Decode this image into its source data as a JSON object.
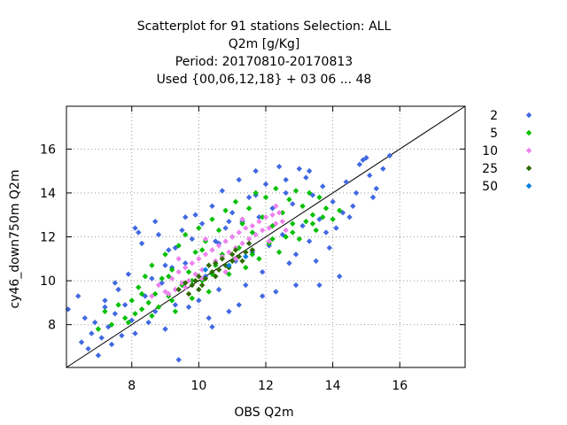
{
  "chart_data": {
    "type": "scatter",
    "title_lines": [
      "Scatterplot for   91 stations Selection: ALL",
      "Q2m [g/Kg]",
      "Period: 20170810-20170813",
      "Used {00,06,12,18} + 03 06 ... 48"
    ],
    "xlabel": "OBS Q2m",
    "ylabel": "cy46_down750m Q2m",
    "xlim": [
      6.05,
      17.95
    ],
    "ylim": [
      6.05,
      17.95
    ],
    "xticks": [
      8,
      10,
      12,
      14,
      16
    ],
    "yticks": [
      8,
      10,
      12,
      14,
      16
    ],
    "grid": true,
    "diagonal_line": true,
    "legend_placement": "right",
    "legend": [
      {
        "label": "2",
        "color": "#4169E1"
      },
      {
        "label": "5",
        "color": "#00C000"
      },
      {
        "label": "10",
        "color": "#EE82EE"
      },
      {
        "label": "25",
        "color": "#2E6B00"
      },
      {
        "label": "50",
        "color": "#0080E0"
      }
    ],
    "series": [
      {
        "label": "2",
        "color": "#4169E1",
        "points": [
          [
            6.1,
            8.7
          ],
          [
            6.4,
            9.3
          ],
          [
            6.5,
            7.2
          ],
          [
            6.6,
            8.3
          ],
          [
            6.7,
            6.9
          ],
          [
            6.8,
            7.6
          ],
          [
            6.9,
            8.1
          ],
          [
            7.0,
            6.6
          ],
          [
            7.1,
            7.4
          ],
          [
            7.2,
            8.8
          ],
          [
            7.3,
            7.9
          ],
          [
            7.4,
            7.1
          ],
          [
            7.5,
            8.5
          ],
          [
            7.6,
            9.6
          ],
          [
            7.7,
            7.5
          ],
          [
            7.8,
            8.9
          ],
          [
            7.9,
            10.3
          ],
          [
            8.0,
            8.2
          ],
          [
            8.1,
            7.6
          ],
          [
            8.2,
            12.2
          ],
          [
            8.3,
            11.7
          ],
          [
            8.4,
            9.3
          ],
          [
            8.5,
            8.1
          ],
          [
            8.6,
            10.1
          ],
          [
            8.7,
            8.6
          ],
          [
            8.8,
            12.1
          ],
          [
            8.9,
            9.9
          ],
          [
            9.0,
            7.8
          ],
          [
            9.1,
            11.4
          ],
          [
            9.2,
            10.6
          ],
          [
            9.3,
            8.9
          ],
          [
            9.4,
            6.4
          ],
          [
            9.5,
            12.3
          ],
          [
            9.6,
            10.8
          ],
          [
            9.7,
            8.8
          ],
          [
            9.8,
            11.9
          ],
          [
            9.9,
            13.0
          ],
          [
            10.0,
            9.1
          ],
          [
            10.1,
            12.6
          ],
          [
            10.2,
            10.2
          ],
          [
            10.3,
            8.3
          ],
          [
            10.4,
            13.4
          ],
          [
            10.5,
            11.8
          ],
          [
            10.6,
            9.6
          ],
          [
            10.7,
            14.1
          ],
          [
            10.8,
            12.4
          ],
          [
            10.9,
            8.6
          ],
          [
            11.0,
            13.1
          ],
          [
            11.1,
            10.9
          ],
          [
            11.2,
            14.6
          ],
          [
            11.3,
            12.7
          ],
          [
            11.4,
            9.8
          ],
          [
            11.5,
            13.8
          ],
          [
            11.6,
            11.3
          ],
          [
            11.7,
            15.0
          ],
          [
            11.8,
            12.9
          ],
          [
            11.9,
            10.4
          ],
          [
            12.0,
            14.4
          ],
          [
            12.1,
            11.6
          ],
          [
            12.2,
            13.3
          ],
          [
            12.3,
            9.5
          ],
          [
            12.4,
            15.2
          ],
          [
            12.5,
            12.1
          ],
          [
            12.6,
            14.0
          ],
          [
            12.7,
            10.8
          ],
          [
            12.8,
            13.5
          ],
          [
            12.9,
            11.2
          ],
          [
            13.0,
            15.1
          ],
          [
            13.1,
            12.5
          ],
          [
            13.2,
            14.7
          ],
          [
            13.3,
            11.8
          ],
          [
            13.4,
            13.9
          ],
          [
            13.5,
            10.9
          ],
          [
            13.6,
            12.8
          ],
          [
            13.7,
            14.3
          ],
          [
            13.8,
            12.2
          ],
          [
            13.9,
            11.5
          ],
          [
            14.0,
            13.6
          ],
          [
            14.1,
            12.4
          ],
          [
            14.2,
            10.2
          ],
          [
            14.3,
            13.1
          ],
          [
            14.4,
            14.5
          ],
          [
            14.5,
            12.9
          ],
          [
            14.6,
            13.4
          ],
          [
            14.7,
            14.0
          ],
          [
            14.8,
            15.3
          ],
          [
            14.9,
            15.5
          ],
          [
            15.0,
            15.6
          ],
          [
            15.1,
            14.8
          ],
          [
            15.2,
            13.8
          ],
          [
            15.3,
            14.2
          ],
          [
            15.5,
            15.1
          ],
          [
            15.7,
            15.7
          ],
          [
            7.5,
            9.9
          ],
          [
            8.7,
            12.7
          ],
          [
            9.6,
            12.9
          ],
          [
            10.4,
            7.9
          ],
          [
            11.2,
            8.9
          ],
          [
            12.9,
            9.8
          ],
          [
            13.6,
            9.8
          ],
          [
            7.2,
            9.1
          ],
          [
            8.1,
            12.4
          ],
          [
            9.3,
            11.5
          ],
          [
            10.9,
            12.7
          ],
          [
            11.7,
            13.9
          ],
          [
            12.6,
            14.6
          ],
          [
            13.3,
            15.0
          ],
          [
            9.0,
            10.7
          ],
          [
            10.6,
            11.7
          ],
          [
            11.9,
            9.3
          ]
        ]
      },
      {
        "label": "5",
        "color": "#00C000",
        "points": [
          [
            7.0,
            7.8
          ],
          [
            7.2,
            8.6
          ],
          [
            7.4,
            8.0
          ],
          [
            7.6,
            8.9
          ],
          [
            7.8,
            8.3
          ],
          [
            8.0,
            9.1
          ],
          [
            8.1,
            8.5
          ],
          [
            8.2,
            9.7
          ],
          [
            8.3,
            8.7
          ],
          [
            8.4,
            10.2
          ],
          [
            8.5,
            9.0
          ],
          [
            8.6,
            10.7
          ],
          [
            8.7,
            9.4
          ],
          [
            8.8,
            8.8
          ],
          [
            8.9,
            10.1
          ],
          [
            9.0,
            11.2
          ],
          [
            9.1,
            9.3
          ],
          [
            9.2,
            10.5
          ],
          [
            9.3,
            8.6
          ],
          [
            9.4,
            11.6
          ],
          [
            9.5,
            9.8
          ],
          [
            9.6,
            12.1
          ],
          [
            9.7,
            10.4
          ],
          [
            9.8,
            9.2
          ],
          [
            9.9,
            11.3
          ],
          [
            10.0,
            12.4
          ],
          [
            10.1,
            10.0
          ],
          [
            10.2,
            11.8
          ],
          [
            10.3,
            9.5
          ],
          [
            10.4,
            12.8
          ],
          [
            10.5,
            10.7
          ],
          [
            10.6,
            12.3
          ],
          [
            10.7,
            11.2
          ],
          [
            10.8,
            13.2
          ],
          [
            10.9,
            10.3
          ],
          [
            11.0,
            12.0
          ],
          [
            11.1,
            13.6
          ],
          [
            11.2,
            11.5
          ],
          [
            11.3,
            12.6
          ],
          [
            11.4,
            10.6
          ],
          [
            11.5,
            13.3
          ],
          [
            11.6,
            12.2
          ],
          [
            11.7,
            14.0
          ],
          [
            11.8,
            11.0
          ],
          [
            11.9,
            12.9
          ],
          [
            12.0,
            13.8
          ],
          [
            12.1,
            11.7
          ],
          [
            12.2,
            12.5
          ],
          [
            12.3,
            14.2
          ],
          [
            12.4,
            11.3
          ],
          [
            12.5,
            13.1
          ],
          [
            12.6,
            12.0
          ],
          [
            12.7,
            13.7
          ],
          [
            12.8,
            12.6
          ],
          [
            12.9,
            14.1
          ],
          [
            13.0,
            11.9
          ],
          [
            13.1,
            13.4
          ],
          [
            13.2,
            12.7
          ],
          [
            13.3,
            14.0
          ],
          [
            13.4,
            13.0
          ],
          [
            13.5,
            12.3
          ],
          [
            13.6,
            13.8
          ],
          [
            13.7,
            12.9
          ],
          [
            13.8,
            13.3
          ],
          [
            14.0,
            12.8
          ],
          [
            14.2,
            13.2
          ],
          [
            7.9,
            8.1
          ],
          [
            8.6,
            8.4
          ],
          [
            9.2,
            9.1
          ],
          [
            9.8,
            10.0
          ],
          [
            10.4,
            10.3
          ],
          [
            11.0,
            10.9
          ],
          [
            11.6,
            11.2
          ],
          [
            12.2,
            11.9
          ],
          [
            12.8,
            12.2
          ],
          [
            13.4,
            12.6
          ],
          [
            8.3,
            9.4
          ],
          [
            9.1,
            10.2
          ],
          [
            10.1,
            11.4
          ],
          [
            11.3,
            12.8
          ]
        ]
      },
      {
        "label": "10",
        "color": "#EE82EE",
        "points": [
          [
            8.6,
            9.3
          ],
          [
            8.8,
            9.8
          ],
          [
            9.0,
            9.5
          ],
          [
            9.2,
            10.1
          ],
          [
            9.3,
            9.6
          ],
          [
            9.4,
            10.4
          ],
          [
            9.5,
            9.9
          ],
          [
            9.6,
            10.6
          ],
          [
            9.7,
            10.0
          ],
          [
            9.8,
            10.8
          ],
          [
            9.9,
            10.3
          ],
          [
            10.0,
            11.0
          ],
          [
            10.1,
            10.5
          ],
          [
            10.2,
            11.2
          ],
          [
            10.3,
            10.7
          ],
          [
            10.4,
            11.4
          ],
          [
            10.5,
            10.9
          ],
          [
            10.6,
            11.6
          ],
          [
            10.7,
            11.1
          ],
          [
            10.8,
            11.8
          ],
          [
            10.9,
            11.3
          ],
          [
            11.0,
            12.0
          ],
          [
            11.1,
            11.5
          ],
          [
            11.2,
            12.2
          ],
          [
            11.3,
            11.7
          ],
          [
            11.4,
            12.4
          ],
          [
            11.5,
            11.9
          ],
          [
            11.6,
            12.5
          ],
          [
            11.7,
            12.1
          ],
          [
            11.8,
            12.7
          ],
          [
            11.9,
            12.3
          ],
          [
            12.0,
            12.9
          ],
          [
            12.1,
            12.4
          ],
          [
            12.2,
            13.0
          ],
          [
            12.3,
            12.6
          ],
          [
            12.4,
            13.1
          ],
          [
            12.5,
            12.7
          ],
          [
            9.1,
            9.4
          ],
          [
            9.6,
            9.7
          ],
          [
            10.1,
            10.1
          ],
          [
            10.6,
            10.5
          ],
          [
            11.1,
            11.0
          ],
          [
            11.6,
            11.4
          ],
          [
            12.1,
            11.8
          ],
          [
            12.6,
            12.3
          ],
          [
            9.4,
            11.0
          ],
          [
            10.2,
            11.9
          ],
          [
            11.3,
            12.8
          ],
          [
            12.3,
            13.4
          ],
          [
            10.8,
            10.4
          ]
        ]
      },
      {
        "label": "25",
        "color": "#2E6B00",
        "points": [
          [
            9.4,
            9.6
          ],
          [
            9.6,
            9.9
          ],
          [
            9.8,
            9.8
          ],
          [
            10.0,
            10.2
          ],
          [
            10.2,
            10.1
          ],
          [
            10.4,
            10.4
          ],
          [
            10.6,
            10.5
          ],
          [
            10.8,
            10.7
          ],
          [
            11.0,
            10.9
          ],
          [
            11.2,
            11.1
          ],
          [
            11.4,
            11.3
          ],
          [
            11.6,
            11.4
          ],
          [
            9.7,
            9.4
          ],
          [
            10.1,
            9.8
          ],
          [
            10.5,
            10.2
          ],
          [
            10.9,
            10.6
          ],
          [
            11.3,
            10.9
          ],
          [
            10.3,
            10.7
          ],
          [
            10.7,
            11.0
          ],
          [
            11.1,
            11.4
          ],
          [
            9.9,
            10.0
          ],
          [
            10.5,
            10.8
          ],
          [
            11.5,
            11.7
          ],
          [
            10.0,
            9.6
          ],
          [
            11.0,
            11.2
          ]
        ]
      },
      {
        "label": "50",
        "color": "#0080E0",
        "points": [
          [
            10.9,
            10.7
          ],
          [
            11.4,
            11.1
          ],
          [
            10.2,
            10.5
          ]
        ]
      }
    ]
  }
}
